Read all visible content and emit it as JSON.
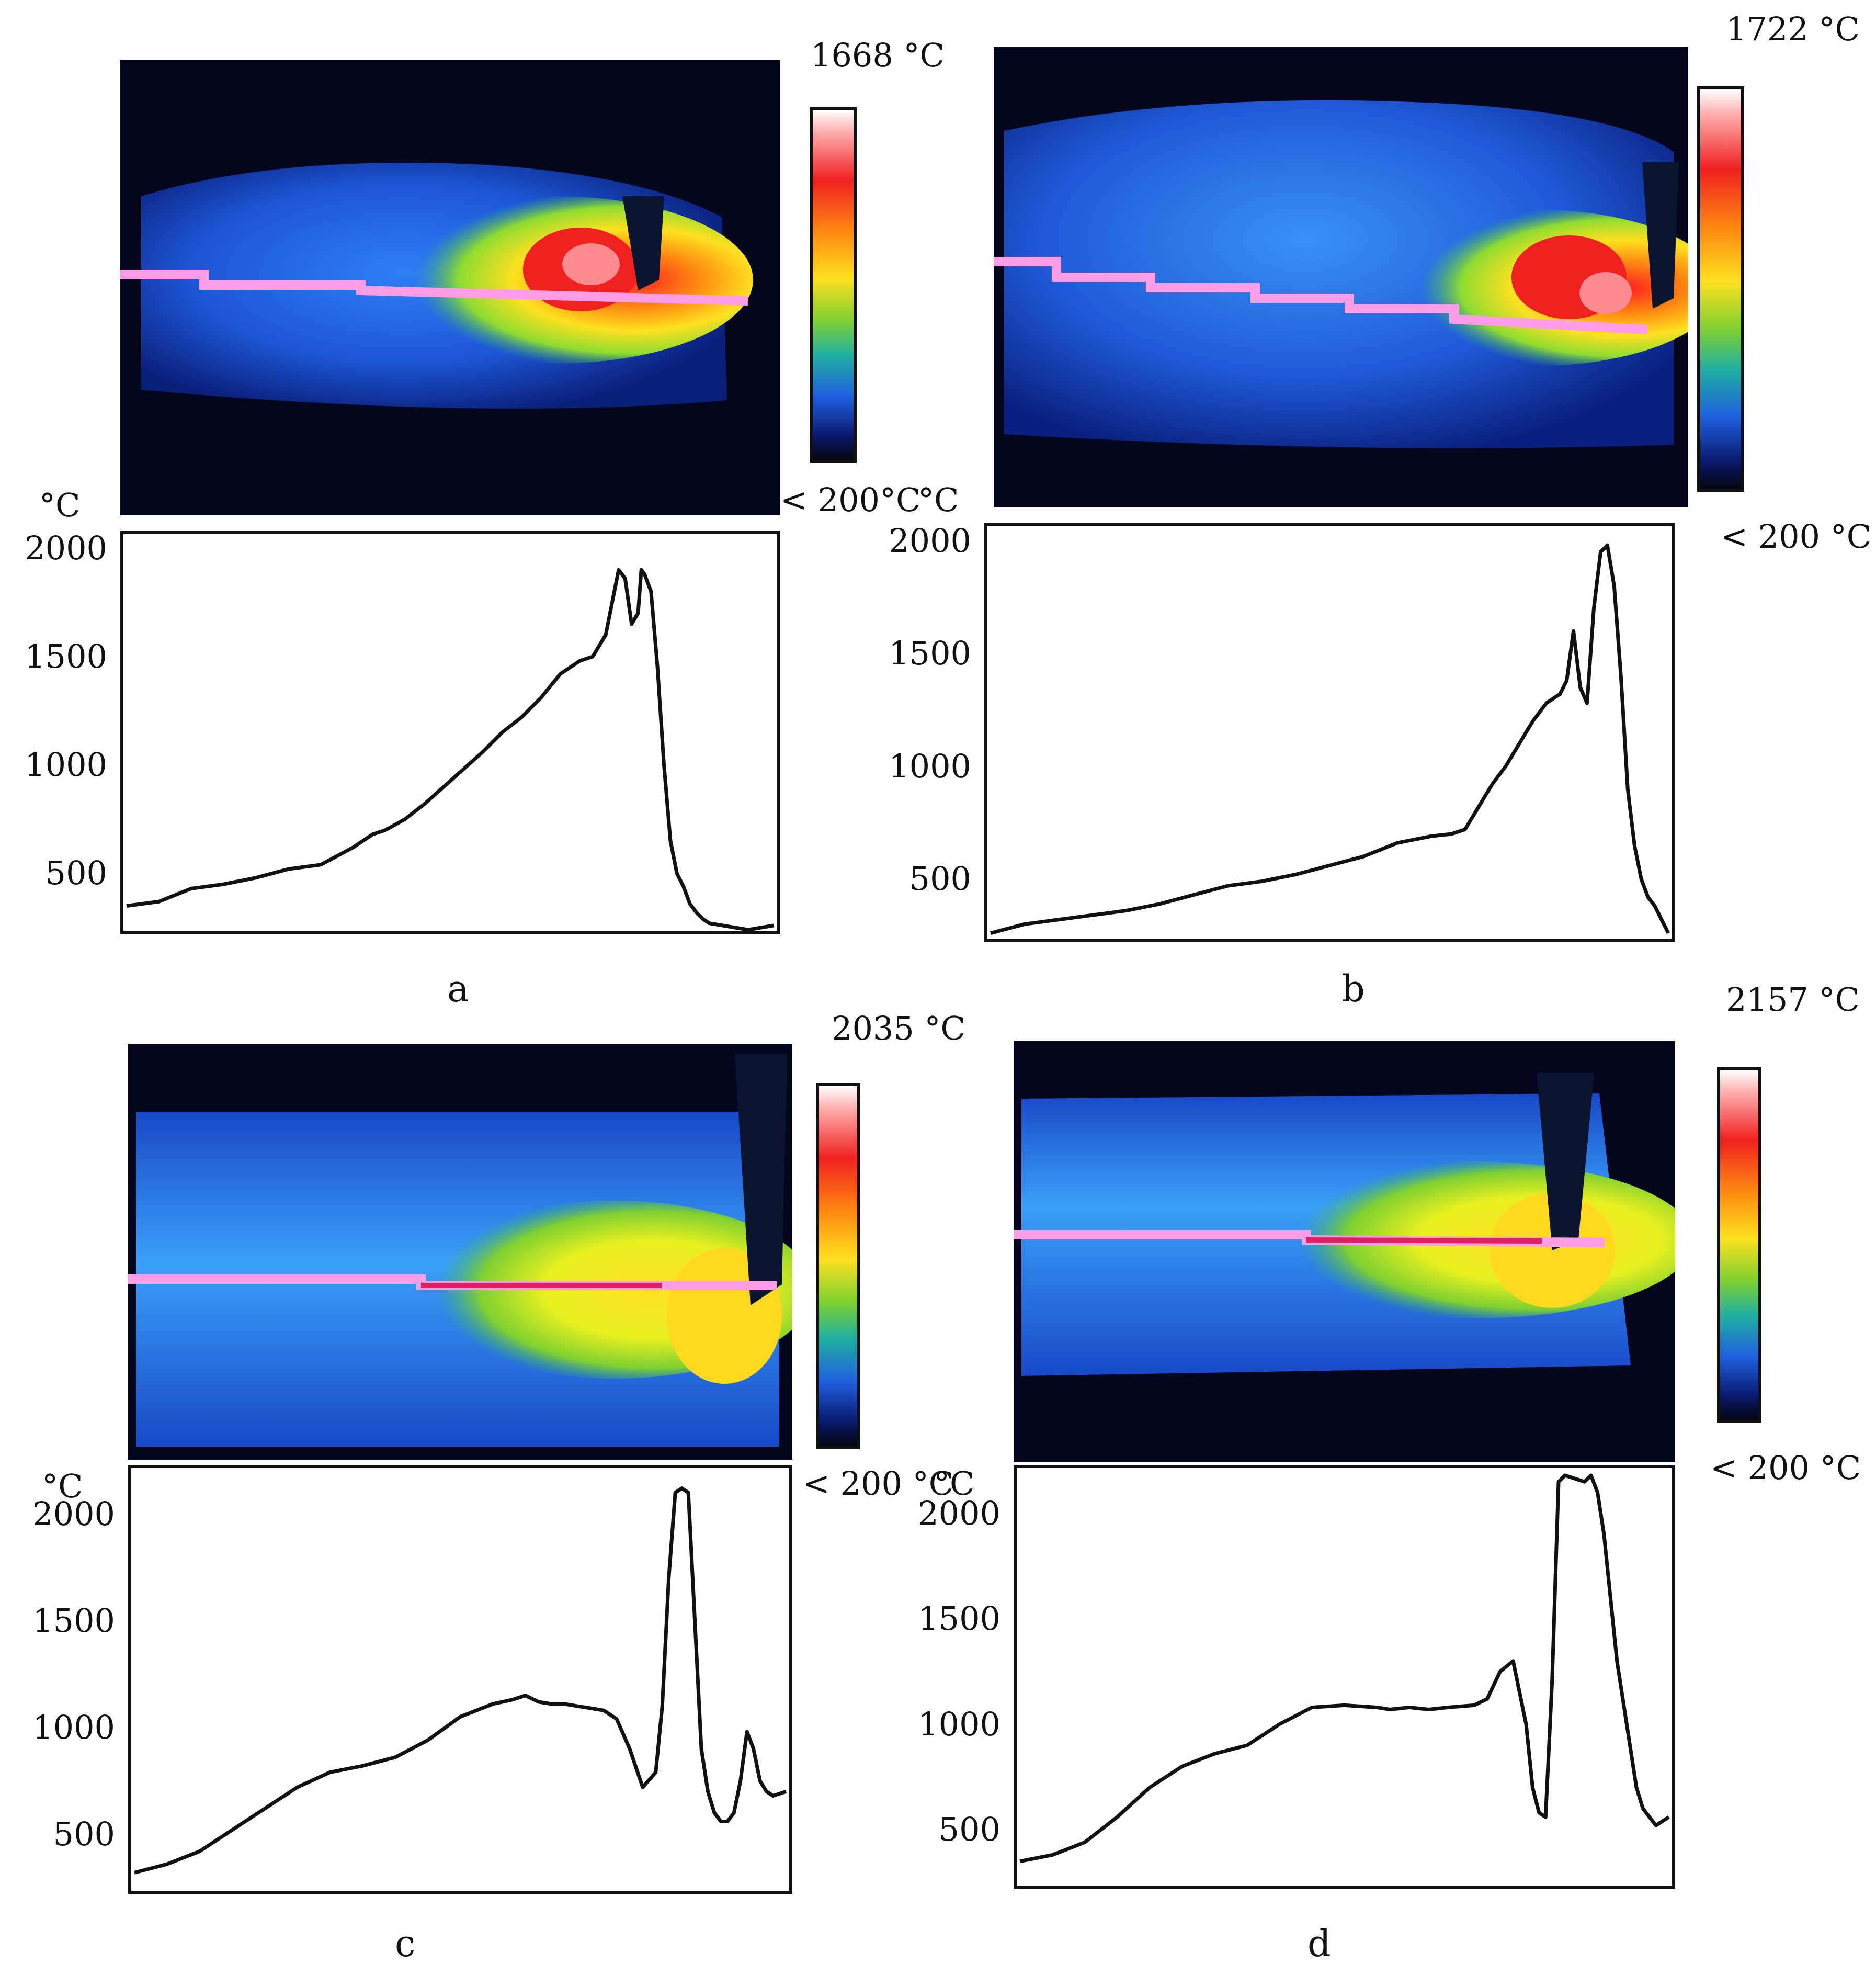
{
  "figure": {
    "panels": [
      {
        "id": "a",
        "letter": "a",
        "max_label": "1668 °C",
        "min_label": "<  200°C",
        "unit_label": "°C",
        "yaxis_unit": "°C"
      },
      {
        "id": "b",
        "letter": "b",
        "max_label": "1722 °C",
        "min_label": "< 200 °C",
        "unit_label": "",
        "yaxis_unit": ""
      },
      {
        "id": "c",
        "letter": "c",
        "max_label": "2035 °C",
        "min_label": "< 200 °C",
        "unit_label": "°C",
        "yaxis_unit": "°C"
      },
      {
        "id": "d",
        "letter": "d",
        "max_label": "2157 °C",
        "min_label": "< 200 °C",
        "unit_label": "",
        "yaxis_unit": ""
      }
    ]
  },
  "chart_data": [
    {
      "type": "line",
      "panel": "a",
      "title": "",
      "xlabel": "",
      "ylabel": "°C",
      "yticks": [
        2000,
        1500,
        1000,
        500
      ],
      "ylim": [
        250,
        2050
      ],
      "xlim": [
        0,
        100
      ],
      "series": [
        {
          "color": "#111111",
          "x": [
            0,
            5,
            10,
            15,
            20,
            25,
            30,
            35,
            38,
            40,
            43,
            46,
            49,
            52,
            55,
            58,
            61,
            64,
            67,
            70,
            72,
            74,
            76,
            77,
            78,
            79,
            79.5,
            80,
            81,
            82,
            83,
            84,
            85,
            86,
            87,
            88,
            89,
            90,
            92,
            94,
            96,
            98,
            100
          ],
          "y": [
            350,
            370,
            430,
            450,
            480,
            520,
            540,
            620,
            680,
            700,
            750,
            820,
            900,
            980,
            1060,
            1150,
            1220,
            1310,
            1420,
            1480,
            1500,
            1600,
            1900,
            1860,
            1650,
            1700,
            1900,
            1880,
            1800,
            1450,
            1000,
            650,
            500,
            440,
            360,
            320,
            290,
            270,
            260,
            250,
            240,
            250,
            260
          ]
        }
      ]
    },
    {
      "type": "line",
      "panel": "b",
      "title": "",
      "xlabel": "",
      "ylabel": "",
      "yticks": [
        2000,
        1500,
        1000,
        500
      ],
      "ylim": [
        250,
        2050
      ],
      "xlim": [
        0,
        100
      ],
      "series": [
        {
          "color": "#111111",
          "x": [
            0,
            5,
            10,
            15,
            20,
            25,
            30,
            35,
            40,
            45,
            50,
            55,
            60,
            65,
            68,
            70,
            72,
            74,
            76,
            78,
            80,
            82,
            84,
            85,
            86,
            87,
            88,
            89,
            90,
            91,
            92,
            93,
            94,
            95,
            96,
            97,
            98,
            99,
            100
          ],
          "y": [
            260,
            300,
            320,
            340,
            360,
            390,
            430,
            470,
            490,
            520,
            560,
            600,
            660,
            690,
            700,
            720,
            820,
            920,
            1000,
            1100,
            1200,
            1280,
            1320,
            1380,
            1600,
            1350,
            1280,
            1700,
            1950,
            1980,
            1800,
            1400,
            900,
            650,
            500,
            420,
            380,
            320,
            260
          ]
        }
      ]
    },
    {
      "type": "line",
      "panel": "c",
      "title": "",
      "xlabel": "",
      "ylabel": "°C",
      "yticks": [
        2000,
        1500,
        1000,
        500
      ],
      "ylim": [
        250,
        2200
      ],
      "xlim": [
        0,
        100
      ],
      "series": [
        {
          "color": "#111111",
          "x": [
            0,
            5,
            10,
            15,
            20,
            25,
            30,
            35,
            40,
            45,
            50,
            55,
            58,
            60,
            62,
            64,
            66,
            68,
            70,
            72,
            74,
            76,
            78,
            80,
            81,
            82,
            83,
            84,
            85,
            86,
            87,
            88,
            89,
            90,
            91,
            92,
            93,
            94,
            95,
            96,
            97,
            98,
            99,
            100
          ],
          "y": [
            320,
            360,
            420,
            520,
            620,
            720,
            790,
            820,
            860,
            940,
            1050,
            1110,
            1130,
            1150,
            1120,
            1110,
            1110,
            1100,
            1090,
            1080,
            1040,
            900,
            720,
            790,
            1100,
            1700,
            2100,
            2120,
            2100,
            1500,
            900,
            700,
            600,
            560,
            560,
            600,
            750,
            980,
            900,
            750,
            700,
            680,
            690,
            700
          ]
        }
      ]
    },
    {
      "type": "line",
      "panel": "d",
      "title": "",
      "xlabel": "",
      "ylabel": "",
      "yticks": [
        2000,
        1500,
        1000,
        500
      ],
      "ylim": [
        250,
        2200
      ],
      "xlim": [
        0,
        100
      ],
      "series": [
        {
          "color": "#111111",
          "x": [
            0,
            5,
            10,
            15,
            20,
            25,
            30,
            35,
            40,
            45,
            50,
            55,
            57,
            60,
            63,
            66,
            70,
            72,
            74,
            76,
            78,
            79,
            80,
            81,
            82,
            83,
            84,
            85,
            86,
            87,
            88,
            89,
            90,
            91,
            92,
            93,
            94,
            95,
            96,
            97,
            98,
            99,
            100
          ],
          "y": [
            350,
            380,
            440,
            560,
            700,
            800,
            860,
            900,
            1000,
            1080,
            1090,
            1080,
            1070,
            1080,
            1070,
            1080,
            1090,
            1120,
            1250,
            1300,
            1000,
            700,
            580,
            560,
            1200,
            2150,
            2180,
            2170,
            2160,
            2150,
            2180,
            2100,
            1900,
            1600,
            1300,
            1100,
            900,
            700,
            600,
            560,
            520,
            540,
            560
          ]
        }
      ]
    }
  ]
}
